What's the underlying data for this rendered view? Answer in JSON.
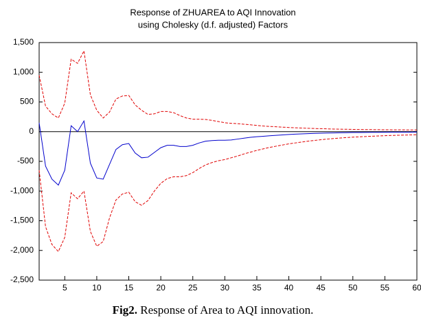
{
  "chart_data": {
    "type": "line",
    "title": [
      "Response of ZHUAREA to AQI Innovation",
      "using Cholesky (d.f. adjusted) Factors"
    ],
    "caption_label": "Fig2.",
    "caption_text": "Response of Area to AQI innovation.",
    "x": [
      1,
      2,
      3,
      4,
      5,
      6,
      7,
      8,
      9,
      10,
      11,
      12,
      13,
      14,
      15,
      16,
      17,
      18,
      19,
      20,
      21,
      22,
      23,
      24,
      25,
      26,
      27,
      28,
      29,
      30,
      31,
      32,
      33,
      34,
      35,
      36,
      37,
      38,
      39,
      40,
      41,
      42,
      43,
      44,
      45,
      46,
      47,
      48,
      49,
      50,
      51,
      52,
      53,
      54,
      55,
      56,
      57,
      58,
      59,
      60
    ],
    "series": [
      {
        "color": "#0000cc",
        "dashed": false,
        "values": [
          150,
          -580,
          -800,
          -900,
          -650,
          100,
          0,
          180,
          -530,
          -780,
          -800,
          -550,
          -300,
          -220,
          -200,
          -360,
          -440,
          -430,
          -350,
          -270,
          -230,
          -230,
          -250,
          -250,
          -230,
          -190,
          -160,
          -150,
          -145,
          -145,
          -140,
          -125,
          -110,
          -95,
          -85,
          -78,
          -70,
          -62,
          -55,
          -48,
          -42,
          -37,
          -33,
          -29,
          -26,
          -23,
          -21,
          -19,
          -17,
          -15,
          -14,
          -13,
          -12,
          -11,
          -10,
          -9,
          -9,
          -8,
          -8,
          -7
        ]
      },
      {
        "color": "#e00000",
        "dashed": true,
        "values": [
          950,
          430,
          300,
          230,
          480,
          1220,
          1150,
          1360,
          620,
          360,
          230,
          330,
          550,
          600,
          610,
          450,
          360,
          290,
          300,
          340,
          340,
          320,
          270,
          230,
          210,
          210,
          205,
          190,
          170,
          150,
          140,
          135,
          125,
          115,
          105,
          95,
          88,
          82,
          76,
          70,
          65,
          61,
          57,
          53,
          50,
          47,
          44,
          42,
          40,
          38,
          36,
          35,
          34,
          33,
          32,
          31,
          30,
          30,
          29,
          29
        ]
      },
      {
        "color": "#e00000",
        "dashed": true,
        "values": [
          -650,
          -1600,
          -1900,
          -2020,
          -1780,
          -1030,
          -1130,
          -1000,
          -1680,
          -1930,
          -1850,
          -1450,
          -1150,
          -1050,
          -1020,
          -1180,
          -1240,
          -1160,
          -1000,
          -870,
          -790,
          -760,
          -760,
          -740,
          -690,
          -620,
          -560,
          -520,
          -490,
          -470,
          -440,
          -410,
          -375,
          -345,
          -315,
          -290,
          -265,
          -245,
          -225,
          -205,
          -190,
          -175,
          -160,
          -148,
          -136,
          -125,
          -116,
          -107,
          -100,
          -93,
          -87,
          -82,
          -77,
          -72,
          -68,
          -64,
          -61,
          -58,
          -55,
          -52
        ]
      }
    ],
    "xlim": [
      1,
      60
    ],
    "xticks": [
      5,
      10,
      15,
      20,
      25,
      30,
      35,
      40,
      45,
      50,
      55,
      60
    ],
    "ylim": [
      -2500,
      1500
    ],
    "yticks": [
      {
        "value": -2500,
        "label": "-2,500"
      },
      {
        "value": -2000,
        "label": "-2,000"
      },
      {
        "value": -1500,
        "label": "-1,500"
      },
      {
        "value": -1000,
        "label": "-1,000"
      },
      -500,
      0,
      500,
      {
        "value": 1000,
        "label": "1,000"
      },
      {
        "value": 1500,
        "label": "1,500"
      }
    ],
    "zero_line": true
  }
}
